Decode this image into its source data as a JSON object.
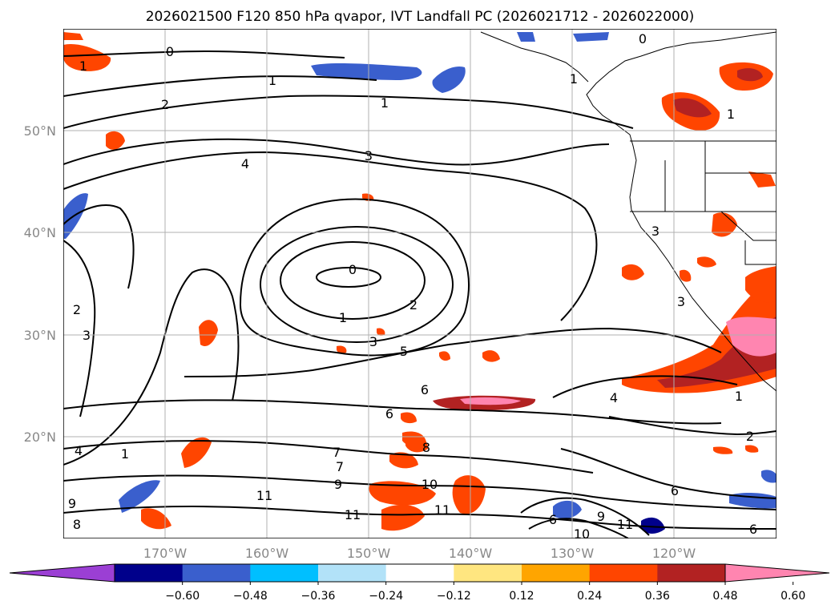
{
  "title": "2026021500 F120 850 hPa qvapor, IVT Landfall PC (2026021712 - 2026022000)",
  "map": {
    "lon_labels": [
      "170°W",
      "160°W",
      "150°W",
      "140°W",
      "130°W",
      "120°W"
    ],
    "lat_labels": [
      "50°N",
      "40°N",
      "30°N",
      "20°N"
    ],
    "gridlines": true
  },
  "colorbar": {
    "ticks": [
      "−0.60",
      "−0.48",
      "−0.36",
      "−0.24",
      "−0.12",
      "0.12",
      "0.24",
      "0.36",
      "0.48",
      "0.60"
    ],
    "colors": [
      "#9b3fd4",
      "#00008b",
      "#3a5fcd",
      "#00bfff",
      "#b2e2f8",
      "#ffffff",
      "#ffe680",
      "#ffa500",
      "#ff4500",
      "#b22222",
      "#ff85b0"
    ],
    "extend": "both"
  },
  "contour_labels": [
    "0",
    "1",
    "2",
    "3",
    "4",
    "5",
    "6",
    "7",
    "8",
    "9",
    "10",
    "11"
  ]
}
